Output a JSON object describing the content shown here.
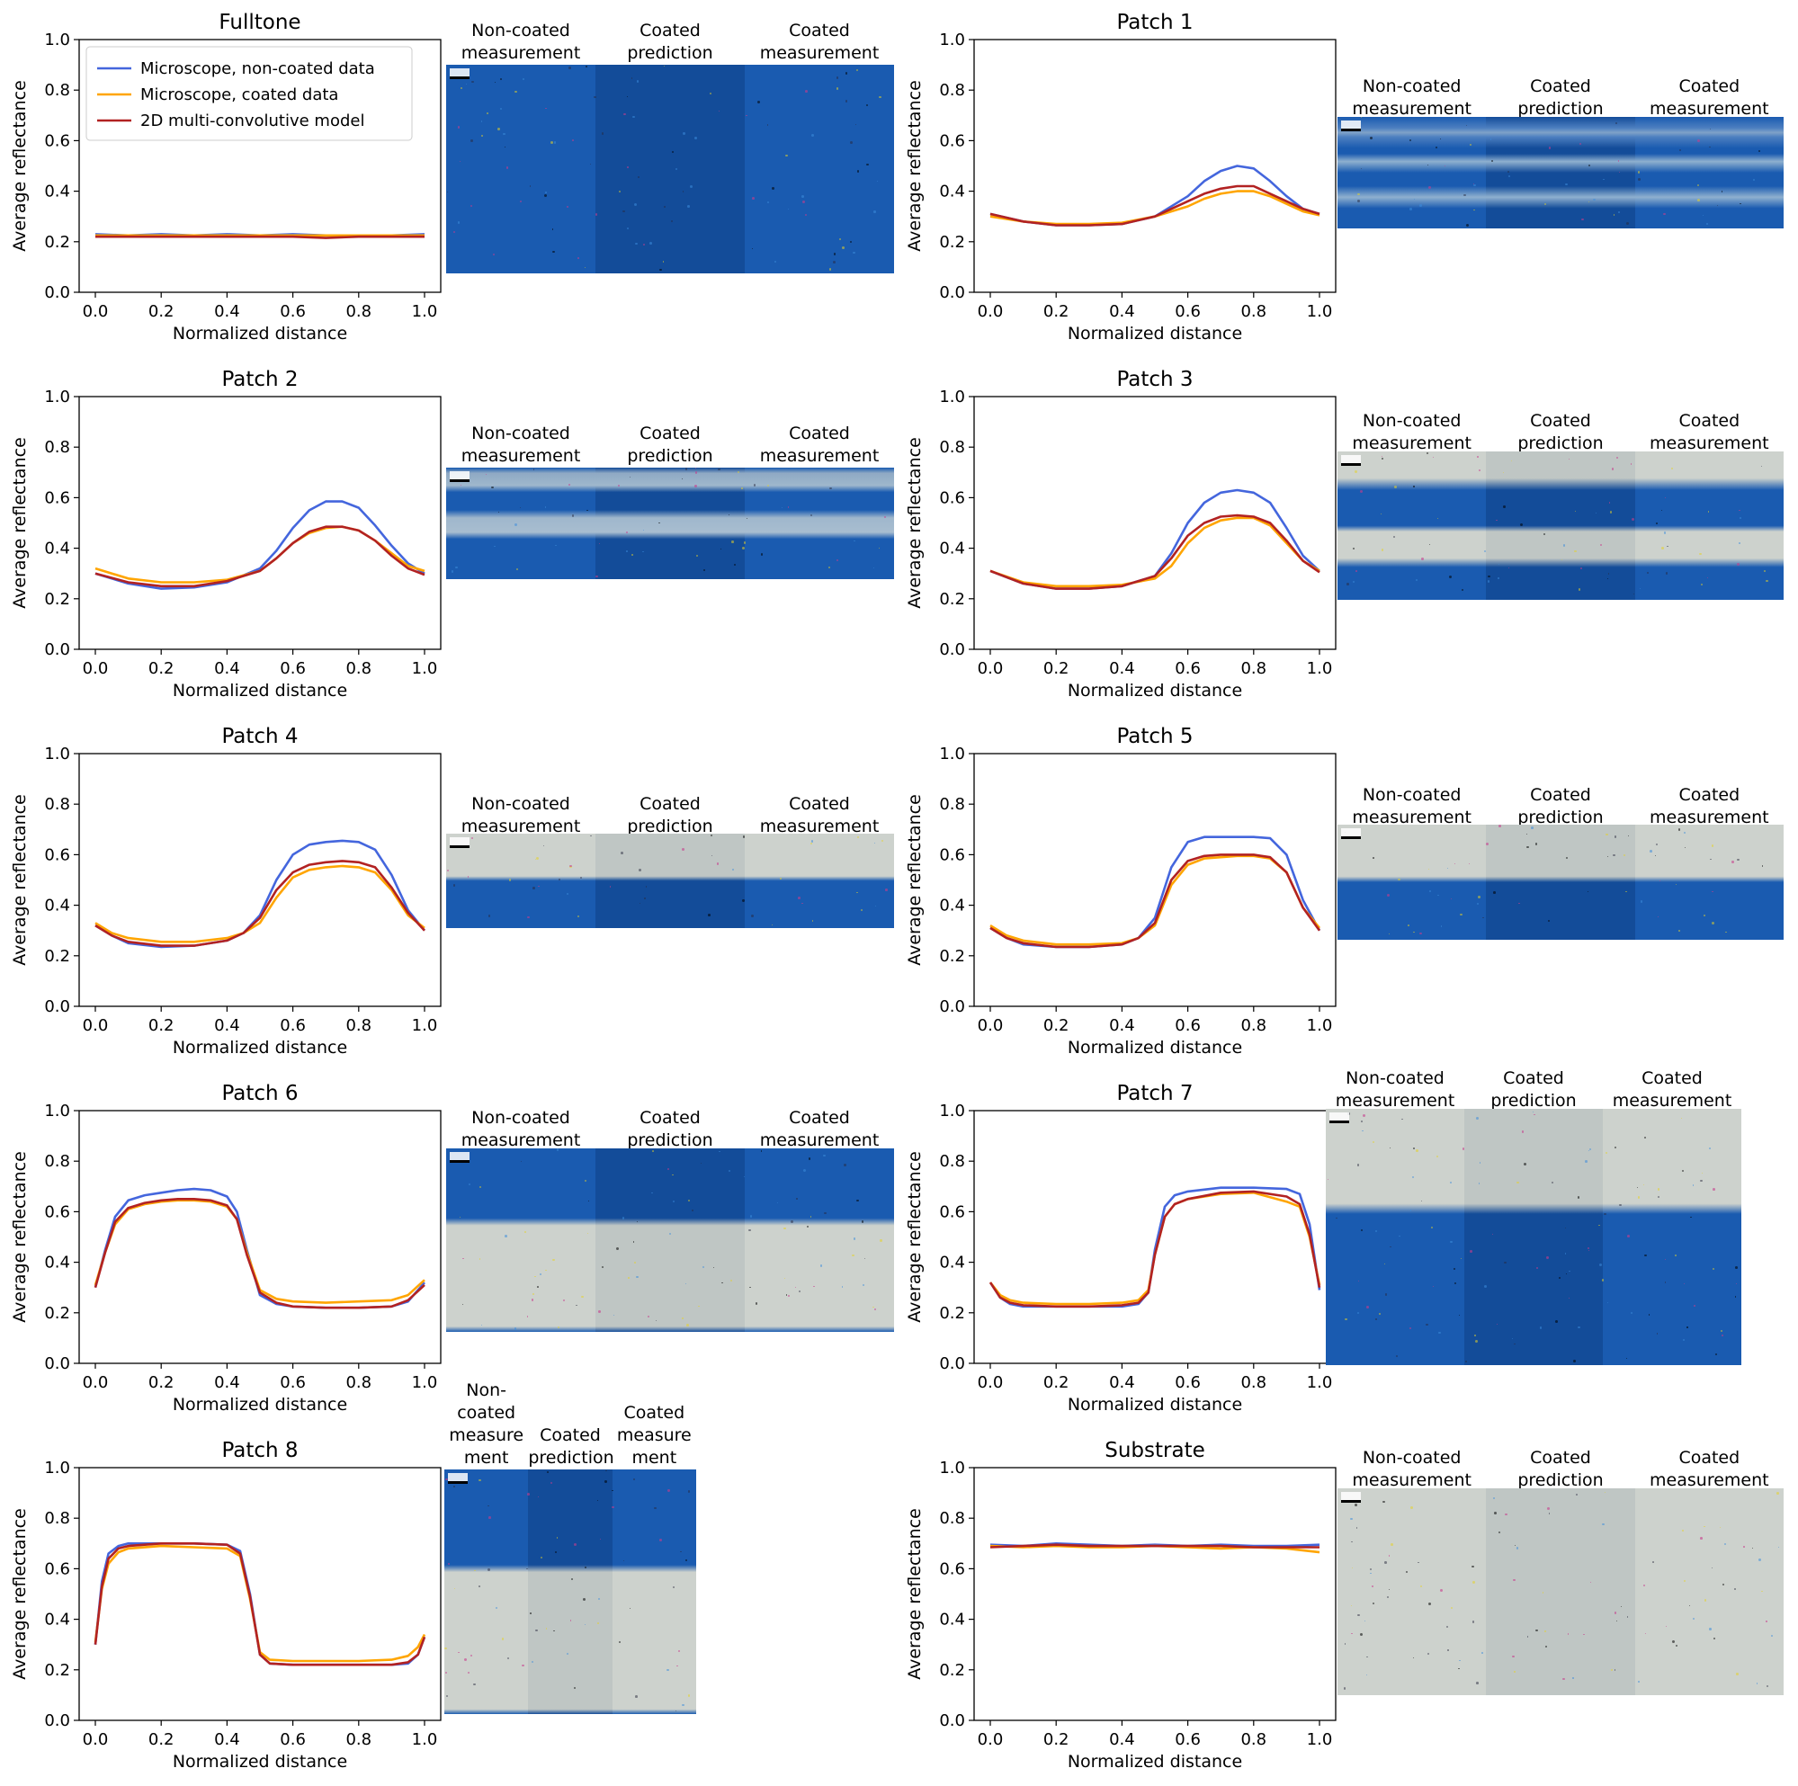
{
  "legend": [
    {
      "name": "Microscope, non-coated data",
      "color": "#4466dd"
    },
    {
      "name": "Microscope, coated data",
      "color": "#ffa500"
    },
    {
      "name": "2D multi-convolutive model",
      "color": "#b22222"
    }
  ],
  "micro_labels": [
    "Non-coated\nmeasurement",
    "Coated\nprediction",
    "Coated\nmeasurement"
  ],
  "micro_labels_patch8": [
    "Non-\ncoated\nmeasure\nment",
    "Coated\nprediction",
    "Coated\nmeasure\nment"
  ],
  "colors": {
    "ink": "#1a5bb0",
    "ink_dark": "#134c99",
    "paper": "#cdd2cd",
    "paper_dark": "#bfc6c4"
  },
  "chart_data": [
    {
      "type": "line",
      "title": "Fulltone",
      "xlabel": "Normalized distance",
      "ylabel": "Average reflectance",
      "xlim": [
        0,
        1
      ],
      "ylim": [
        0,
        1
      ],
      "xticks": [
        "0.0",
        "0.2",
        "0.4",
        "0.6",
        "0.8",
        "1.0"
      ],
      "yticks": [
        "0.0",
        "0.2",
        "0.4",
        "0.6",
        "0.8",
        "1.0"
      ],
      "legend": "top-left",
      "x": [
        0,
        0.1,
        0.2,
        0.3,
        0.4,
        0.5,
        0.6,
        0.7,
        0.8,
        0.9,
        1.0
      ],
      "series": [
        {
          "name": "Microscope, non-coated data",
          "values": [
            0.23,
            0.225,
            0.23,
            0.225,
            0.23,
            0.225,
            0.23,
            0.225,
            0.225,
            0.225,
            0.23
          ]
        },
        {
          "name": "Microscope, coated data",
          "values": [
            0.225,
            0.225,
            0.225,
            0.225,
            0.225,
            0.225,
            0.225,
            0.225,
            0.225,
            0.225,
            0.225
          ]
        },
        {
          "name": "2D multi-convolutive model",
          "values": [
            0.22,
            0.22,
            0.22,
            0.22,
            0.22,
            0.22,
            0.22,
            0.215,
            0.22,
            0.22,
            0.22
          ]
        }
      ]
    },
    {
      "type": "line",
      "title": "Patch 1",
      "xlabel": "Normalized distance",
      "ylabel": "Average reflectance",
      "xlim": [
        0,
        1
      ],
      "ylim": [
        0,
        1
      ],
      "xticks": [
        "0.0",
        "0.2",
        "0.4",
        "0.6",
        "0.8",
        "1.0"
      ],
      "yticks": [
        "0.0",
        "0.2",
        "0.4",
        "0.6",
        "0.8",
        "1.0"
      ],
      "x": [
        0,
        0.1,
        0.2,
        0.3,
        0.4,
        0.5,
        0.6,
        0.65,
        0.7,
        0.75,
        0.8,
        0.85,
        0.9,
        0.95,
        1.0
      ],
      "series": [
        {
          "name": "Microscope, non-coated data",
          "values": [
            0.31,
            0.28,
            0.265,
            0.265,
            0.27,
            0.3,
            0.38,
            0.44,
            0.48,
            0.5,
            0.49,
            0.44,
            0.38,
            0.33,
            0.31
          ]
        },
        {
          "name": "Microscope, coated data",
          "values": [
            0.3,
            0.28,
            0.27,
            0.27,
            0.275,
            0.3,
            0.34,
            0.37,
            0.39,
            0.4,
            0.4,
            0.38,
            0.35,
            0.32,
            0.305
          ]
        },
        {
          "name": "2D multi-convolutive model",
          "values": [
            0.31,
            0.28,
            0.265,
            0.265,
            0.27,
            0.3,
            0.36,
            0.39,
            0.41,
            0.42,
            0.42,
            0.39,
            0.36,
            0.33,
            0.31
          ]
        }
      ]
    },
    {
      "type": "line",
      "title": "Patch 2",
      "xlabel": "Normalized distance",
      "ylabel": "Average reflectance",
      "xlim": [
        0,
        1
      ],
      "ylim": [
        0,
        1
      ],
      "xticks": [
        "0.0",
        "0.2",
        "0.4",
        "0.6",
        "0.8",
        "1.0"
      ],
      "yticks": [
        "0.0",
        "0.2",
        "0.4",
        "0.6",
        "0.8",
        "1.0"
      ],
      "x": [
        0,
        0.1,
        0.2,
        0.3,
        0.4,
        0.5,
        0.55,
        0.6,
        0.65,
        0.7,
        0.75,
        0.8,
        0.85,
        0.9,
        0.95,
        1.0
      ],
      "series": [
        {
          "name": "Microscope, non-coated data",
          "values": [
            0.3,
            0.26,
            0.24,
            0.245,
            0.265,
            0.32,
            0.39,
            0.48,
            0.55,
            0.585,
            0.585,
            0.56,
            0.49,
            0.41,
            0.34,
            0.3
          ]
        },
        {
          "name": "Microscope, coated data",
          "values": [
            0.32,
            0.28,
            0.265,
            0.265,
            0.275,
            0.31,
            0.36,
            0.42,
            0.46,
            0.48,
            0.485,
            0.47,
            0.43,
            0.38,
            0.33,
            0.31
          ]
        },
        {
          "name": "2D multi-convolutive model",
          "values": [
            0.3,
            0.265,
            0.25,
            0.25,
            0.27,
            0.31,
            0.36,
            0.42,
            0.465,
            0.485,
            0.485,
            0.47,
            0.43,
            0.37,
            0.32,
            0.295
          ]
        }
      ]
    },
    {
      "type": "line",
      "title": "Patch 3",
      "xlabel": "Normalized distance",
      "ylabel": "Average reflectance",
      "xlim": [
        0,
        1
      ],
      "ylim": [
        0,
        1
      ],
      "xticks": [
        "0.0",
        "0.2",
        "0.4",
        "0.6",
        "0.8",
        "1.0"
      ],
      "yticks": [
        "0.0",
        "0.2",
        "0.4",
        "0.6",
        "0.8",
        "1.0"
      ],
      "x": [
        0,
        0.1,
        0.2,
        0.3,
        0.4,
        0.5,
        0.55,
        0.6,
        0.65,
        0.7,
        0.75,
        0.8,
        0.85,
        0.9,
        0.95,
        1.0
      ],
      "series": [
        {
          "name": "Microscope, non-coated data",
          "values": [
            0.31,
            0.26,
            0.24,
            0.24,
            0.25,
            0.29,
            0.38,
            0.5,
            0.58,
            0.62,
            0.63,
            0.62,
            0.58,
            0.48,
            0.37,
            0.31
          ]
        },
        {
          "name": "Microscope, coated data",
          "values": [
            0.31,
            0.265,
            0.25,
            0.25,
            0.255,
            0.28,
            0.33,
            0.42,
            0.48,
            0.51,
            0.52,
            0.52,
            0.49,
            0.42,
            0.35,
            0.31
          ]
        },
        {
          "name": "2D multi-convolutive model",
          "values": [
            0.31,
            0.26,
            0.24,
            0.24,
            0.25,
            0.29,
            0.36,
            0.45,
            0.5,
            0.525,
            0.53,
            0.525,
            0.5,
            0.43,
            0.35,
            0.305
          ]
        }
      ]
    },
    {
      "type": "line",
      "title": "Patch 4",
      "xlabel": "Normalized distance",
      "ylabel": "Average reflectance",
      "xlim": [
        0,
        1
      ],
      "ylim": [
        0,
        1
      ],
      "xticks": [
        "0.0",
        "0.2",
        "0.4",
        "0.6",
        "0.8",
        "1.0"
      ],
      "yticks": [
        "0.0",
        "0.2",
        "0.4",
        "0.6",
        "0.8",
        "1.0"
      ],
      "x": [
        0,
        0.05,
        0.1,
        0.2,
        0.3,
        0.4,
        0.45,
        0.5,
        0.55,
        0.6,
        0.65,
        0.7,
        0.75,
        0.8,
        0.85,
        0.9,
        0.95,
        1.0
      ],
      "series": [
        {
          "name": "Microscope, non-coated data",
          "values": [
            0.32,
            0.28,
            0.25,
            0.235,
            0.24,
            0.26,
            0.29,
            0.36,
            0.5,
            0.6,
            0.64,
            0.65,
            0.655,
            0.65,
            0.62,
            0.52,
            0.38,
            0.3
          ]
        },
        {
          "name": "Microscope, coated data",
          "values": [
            0.33,
            0.29,
            0.27,
            0.255,
            0.255,
            0.27,
            0.29,
            0.33,
            0.43,
            0.51,
            0.54,
            0.55,
            0.555,
            0.55,
            0.53,
            0.46,
            0.36,
            0.31
          ]
        },
        {
          "name": "2D multi-convolutive model",
          "values": [
            0.32,
            0.28,
            0.255,
            0.24,
            0.24,
            0.26,
            0.29,
            0.35,
            0.46,
            0.53,
            0.56,
            0.57,
            0.575,
            0.57,
            0.55,
            0.47,
            0.37,
            0.3
          ]
        }
      ]
    },
    {
      "type": "line",
      "title": "Patch 5",
      "xlabel": "Normalized distance",
      "ylabel": "Average reflectance",
      "xlim": [
        0,
        1
      ],
      "ylim": [
        0,
        1
      ],
      "xticks": [
        "0.0",
        "0.2",
        "0.4",
        "0.6",
        "0.8",
        "1.0"
      ],
      "yticks": [
        "0.0",
        "0.2",
        "0.4",
        "0.6",
        "0.8",
        "1.0"
      ],
      "x": [
        0,
        0.05,
        0.1,
        0.2,
        0.3,
        0.4,
        0.45,
        0.5,
        0.55,
        0.6,
        0.65,
        0.7,
        0.75,
        0.8,
        0.85,
        0.9,
        0.95,
        1.0
      ],
      "series": [
        {
          "name": "Microscope, non-coated data",
          "values": [
            0.31,
            0.27,
            0.245,
            0.235,
            0.235,
            0.245,
            0.27,
            0.35,
            0.55,
            0.65,
            0.67,
            0.67,
            0.67,
            0.67,
            0.665,
            0.6,
            0.42,
            0.3
          ]
        },
        {
          "name": "Microscope, coated data",
          "values": [
            0.32,
            0.28,
            0.26,
            0.245,
            0.245,
            0.25,
            0.27,
            0.32,
            0.48,
            0.56,
            0.585,
            0.59,
            0.595,
            0.595,
            0.585,
            0.53,
            0.39,
            0.31
          ]
        },
        {
          "name": "2D multi-convolutive model",
          "values": [
            0.31,
            0.27,
            0.25,
            0.235,
            0.235,
            0.245,
            0.27,
            0.33,
            0.5,
            0.575,
            0.595,
            0.6,
            0.6,
            0.6,
            0.59,
            0.53,
            0.39,
            0.3
          ]
        }
      ]
    },
    {
      "type": "line",
      "title": "Patch 6",
      "xlabel": "Normalized distance",
      "ylabel": "Average reflectance",
      "xlim": [
        0,
        1
      ],
      "ylim": [
        0,
        1
      ],
      "xticks": [
        "0.0",
        "0.2",
        "0.4",
        "0.6",
        "0.8",
        "1.0"
      ],
      "yticks": [
        "0.0",
        "0.2",
        "0.4",
        "0.6",
        "0.8",
        "1.0"
      ],
      "x": [
        0,
        0.03,
        0.06,
        0.1,
        0.15,
        0.2,
        0.25,
        0.3,
        0.35,
        0.4,
        0.43,
        0.46,
        0.5,
        0.55,
        0.6,
        0.7,
        0.8,
        0.9,
        0.95,
        1.0
      ],
      "series": [
        {
          "name": "Microscope, non-coated data",
          "values": [
            0.3,
            0.45,
            0.58,
            0.645,
            0.665,
            0.675,
            0.685,
            0.69,
            0.685,
            0.66,
            0.6,
            0.45,
            0.27,
            0.235,
            0.225,
            0.22,
            0.22,
            0.225,
            0.245,
            0.32
          ]
        },
        {
          "name": "Microscope, coated data",
          "values": [
            0.31,
            0.44,
            0.55,
            0.61,
            0.63,
            0.64,
            0.645,
            0.645,
            0.64,
            0.62,
            0.57,
            0.44,
            0.29,
            0.255,
            0.245,
            0.24,
            0.245,
            0.25,
            0.27,
            0.33
          ]
        },
        {
          "name": "2D multi-convolutive model",
          "values": [
            0.3,
            0.44,
            0.56,
            0.615,
            0.635,
            0.645,
            0.65,
            0.65,
            0.645,
            0.625,
            0.57,
            0.43,
            0.28,
            0.24,
            0.225,
            0.22,
            0.22,
            0.225,
            0.25,
            0.31
          ]
        }
      ]
    },
    {
      "type": "line",
      "title": "Patch 7",
      "xlabel": "Normalized distance",
      "ylabel": "Average reflectance",
      "xlim": [
        0,
        1
      ],
      "ylim": [
        0,
        1
      ],
      "xticks": [
        "0.0",
        "0.2",
        "0.4",
        "0.6",
        "0.8",
        "1.0"
      ],
      "yticks": [
        "0.0",
        "0.2",
        "0.4",
        "0.6",
        "0.8",
        "1.0"
      ],
      "x": [
        0,
        0.03,
        0.06,
        0.1,
        0.2,
        0.3,
        0.4,
        0.45,
        0.48,
        0.5,
        0.53,
        0.56,
        0.6,
        0.7,
        0.8,
        0.9,
        0.94,
        0.97,
        1.0
      ],
      "series": [
        {
          "name": "Microscope, non-coated data",
          "values": [
            0.32,
            0.26,
            0.235,
            0.225,
            0.225,
            0.225,
            0.225,
            0.235,
            0.28,
            0.45,
            0.62,
            0.665,
            0.68,
            0.695,
            0.695,
            0.69,
            0.67,
            0.55,
            0.29
          ]
        },
        {
          "name": "Microscope, coated data",
          "values": [
            0.32,
            0.27,
            0.25,
            0.24,
            0.235,
            0.235,
            0.24,
            0.25,
            0.29,
            0.43,
            0.58,
            0.63,
            0.65,
            0.67,
            0.675,
            0.64,
            0.62,
            0.5,
            0.31
          ]
        },
        {
          "name": "2D multi-convolutive model",
          "values": [
            0.32,
            0.26,
            0.24,
            0.23,
            0.225,
            0.225,
            0.23,
            0.24,
            0.28,
            0.43,
            0.58,
            0.63,
            0.65,
            0.675,
            0.68,
            0.66,
            0.63,
            0.51,
            0.3
          ]
        }
      ]
    },
    {
      "type": "line",
      "title": "Patch 8",
      "xlabel": "Normalized distance",
      "ylabel": "Average reflectance",
      "xlim": [
        0,
        1
      ],
      "ylim": [
        0,
        1
      ],
      "xticks": [
        "0.0",
        "0.2",
        "0.4",
        "0.6",
        "0.8",
        "1.0"
      ],
      "yticks": [
        "0.0",
        "0.2",
        "0.4",
        "0.6",
        "0.8",
        "1.0"
      ],
      "x": [
        0,
        0.02,
        0.04,
        0.07,
        0.1,
        0.2,
        0.3,
        0.4,
        0.44,
        0.47,
        0.5,
        0.53,
        0.6,
        0.7,
        0.8,
        0.9,
        0.95,
        0.98,
        1.0
      ],
      "series": [
        {
          "name": "Microscope, non-coated data",
          "values": [
            0.3,
            0.55,
            0.66,
            0.69,
            0.7,
            0.7,
            0.7,
            0.695,
            0.67,
            0.5,
            0.26,
            0.225,
            0.22,
            0.22,
            0.22,
            0.22,
            0.225,
            0.26,
            0.33
          ]
        },
        {
          "name": "Microscope, coated data",
          "values": [
            0.31,
            0.52,
            0.62,
            0.665,
            0.68,
            0.69,
            0.685,
            0.68,
            0.65,
            0.48,
            0.27,
            0.24,
            0.235,
            0.235,
            0.235,
            0.24,
            0.255,
            0.29,
            0.34
          ]
        },
        {
          "name": "2D multi-convolutive model",
          "values": [
            0.3,
            0.53,
            0.64,
            0.68,
            0.69,
            0.7,
            0.7,
            0.695,
            0.66,
            0.49,
            0.26,
            0.225,
            0.22,
            0.22,
            0.22,
            0.22,
            0.23,
            0.26,
            0.33
          ]
        }
      ]
    },
    {
      "type": "line",
      "title": "Substrate",
      "xlabel": "Normalized distance",
      "ylabel": "Average reflectance",
      "xlim": [
        0,
        1
      ],
      "ylim": [
        0,
        1
      ],
      "xticks": [
        "0.0",
        "0.2",
        "0.4",
        "0.6",
        "0.8",
        "1.0"
      ],
      "yticks": [
        "0.0",
        "0.2",
        "0.4",
        "0.6",
        "0.8",
        "1.0"
      ],
      "x": [
        0,
        0.1,
        0.2,
        0.3,
        0.4,
        0.5,
        0.6,
        0.7,
        0.8,
        0.9,
        1.0
      ],
      "series": [
        {
          "name": "Microscope, non-coated data",
          "values": [
            0.695,
            0.69,
            0.7,
            0.695,
            0.69,
            0.695,
            0.69,
            0.695,
            0.69,
            0.69,
            0.695
          ]
        },
        {
          "name": "Microscope, coated data",
          "values": [
            0.69,
            0.685,
            0.69,
            0.685,
            0.685,
            0.69,
            0.685,
            0.68,
            0.685,
            0.68,
            0.665
          ]
        },
        {
          "name": "2D multi-convolutive model",
          "values": [
            0.685,
            0.69,
            0.695,
            0.69,
            0.69,
            0.69,
            0.69,
            0.69,
            0.685,
            0.685,
            0.685
          ]
        }
      ]
    }
  ]
}
